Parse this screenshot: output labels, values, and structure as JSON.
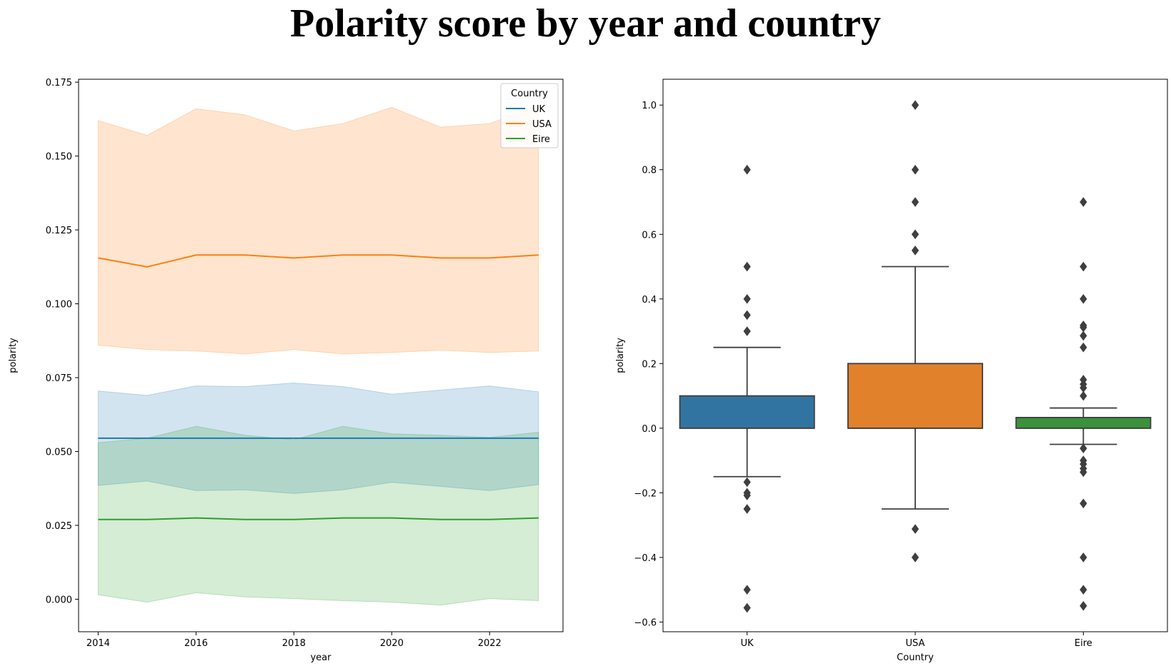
{
  "title": "Polarity score by year and country",
  "chart_data": [
    {
      "type": "line",
      "xlabel": "year",
      "ylabel": "polarity",
      "xlim": [
        2013.6,
        2023.5
      ],
      "ylim": [
        -0.011,
        0.176
      ],
      "xticks": [
        2014,
        2016,
        2018,
        2020,
        2022
      ],
      "xtick_labels": [
        "2014",
        "2016",
        "2018",
        "2020",
        "2022"
      ],
      "yticks": [
        0.0,
        0.025,
        0.05,
        0.075,
        0.1,
        0.125,
        0.15,
        0.175
      ],
      "ytick_labels": [
        "0.000",
        "0.025",
        "0.050",
        "0.075",
        "0.100",
        "0.125",
        "0.150",
        "0.175"
      ],
      "legend": {
        "title": "Country",
        "placement": "top-right"
      },
      "grid": false,
      "x": [
        2014,
        2015,
        2016,
        2017,
        2018,
        2019,
        2020,
        2021,
        2022,
        2023
      ],
      "series": [
        {
          "name": "UK",
          "color": "#1f77b4",
          "values": [
            0.0545,
            0.0545,
            0.0545,
            0.0545,
            0.0545,
            0.0545,
            0.0545,
            0.0545,
            0.0545,
            0.0545
          ],
          "ci_low": [
            0.0705,
            0.069,
            0.0722,
            0.072,
            0.0732,
            0.072,
            0.0694,
            0.0708,
            0.0722,
            0.0702
          ],
          "ci_high": [
            0.0705,
            0.069,
            0.0722,
            0.072,
            0.0732,
            0.072,
            0.0694,
            0.0708,
            0.0722,
            0.0702
          ],
          "ci_low_true": [
            0.0385,
            0.04,
            0.0368,
            0.037,
            0.0358,
            0.037,
            0.0396,
            0.0382,
            0.0368,
            0.0388
          ]
        },
        {
          "name": "USA",
          "color": "#ff7f0e",
          "values": [
            0.1155,
            0.1125,
            0.1165,
            0.1165,
            0.1155,
            0.1165,
            0.1165,
            0.1155,
            0.1155,
            0.1165
          ],
          "ci_low": [
            0.0705,
            0.069,
            0.0722,
            0.072,
            0.0732,
            0.072,
            0.0694,
            0.0708,
            0.0722,
            0.0702
          ],
          "ci_high": [
            0.162,
            0.157,
            0.166,
            0.164,
            0.1585,
            0.161,
            0.1665,
            0.1598,
            0.161,
            0.167
          ]
        },
        {
          "name": "Eire",
          "color": "#2ca02c",
          "values": [
            0.027,
            0.027,
            0.0275,
            0.027,
            0.027,
            0.0275,
            0.0275,
            0.027,
            0.027,
            0.0275
          ],
          "ci_low": [
            0.0015,
            -0.001,
            0.0022,
            0.0008,
            0.0002,
            -0.0005,
            -0.001,
            -0.002,
            0.0002,
            -0.0005
          ],
          "ci_high": [
            0.053,
            0.0545,
            0.0585,
            0.0555,
            0.054,
            0.0585,
            0.056,
            0.0555,
            0.0548,
            0.0565
          ]
        }
      ],
      "band_uk": {
        "low": [
          0.0385,
          0.04,
          0.0368,
          0.037,
          0.0358,
          0.037,
          0.0396,
          0.0382,
          0.0368,
          0.0388
        ],
        "high": [
          0.0705,
          0.069,
          0.0722,
          0.072,
          0.0732,
          0.072,
          0.0694,
          0.0708,
          0.0722,
          0.0702
        ]
      },
      "band_usa_low": [
        0.086,
        0.0845,
        0.084,
        0.083,
        0.0845,
        0.083,
        0.0835,
        0.0843,
        0.0835,
        0.084
      ],
      "band_eire_low2": [
        0.028,
        0.026,
        0.0265,
        0.0238,
        0.024,
        0.0245,
        0.027,
        0.0265,
        0.0255,
        0.0235
      ]
    },
    {
      "type": "box",
      "xlabel": "Country",
      "ylabel": "polarity",
      "categories": [
        "UK",
        "USA",
        "Eire"
      ],
      "ylim": [
        -0.63,
        1.08
      ],
      "yticks": [
        -0.6,
        -0.4,
        -0.2,
        0.0,
        0.2,
        0.4,
        0.6,
        0.8,
        1.0
      ],
      "ytick_labels": [
        "−0.6",
        "−0.4",
        "−0.2",
        "0.0",
        "0.2",
        "0.4",
        "0.6",
        "0.8",
        "1.0"
      ],
      "grid": false,
      "boxes": [
        {
          "name": "UK",
          "color": "#3274a1",
          "q1": 0.0,
          "median": 0.0,
          "q3": 0.1,
          "whisker_low": -0.15,
          "whisker_high": 0.25,
          "outliers": [
            0.8,
            0.5,
            0.4,
            0.35,
            0.3,
            -0.167,
            -0.2,
            -0.208,
            -0.25,
            -0.5,
            -0.556
          ]
        },
        {
          "name": "USA",
          "color": "#e1812c",
          "q1": 0.0,
          "median": 0.0,
          "q3": 0.2,
          "whisker_low": -0.25,
          "whisker_high": 0.5,
          "outliers": [
            1.0,
            0.8,
            0.7,
            0.6,
            0.55,
            -0.312,
            -0.4
          ]
        },
        {
          "name": "Eire",
          "color": "#3a923a",
          "q1": 0.0,
          "median": 0.0,
          "q3": 0.033,
          "whisker_low": -0.05,
          "whisker_high": 0.0625,
          "outliers": [
            0.7,
            0.5,
            0.4,
            0.318,
            0.312,
            0.286,
            0.25,
            0.15,
            0.136,
            0.125,
            0.1,
            -0.0625,
            -0.1,
            -0.111,
            -0.125,
            -0.136,
            -0.233,
            -0.4,
            -0.5,
            -0.55
          ]
        }
      ]
    }
  ]
}
